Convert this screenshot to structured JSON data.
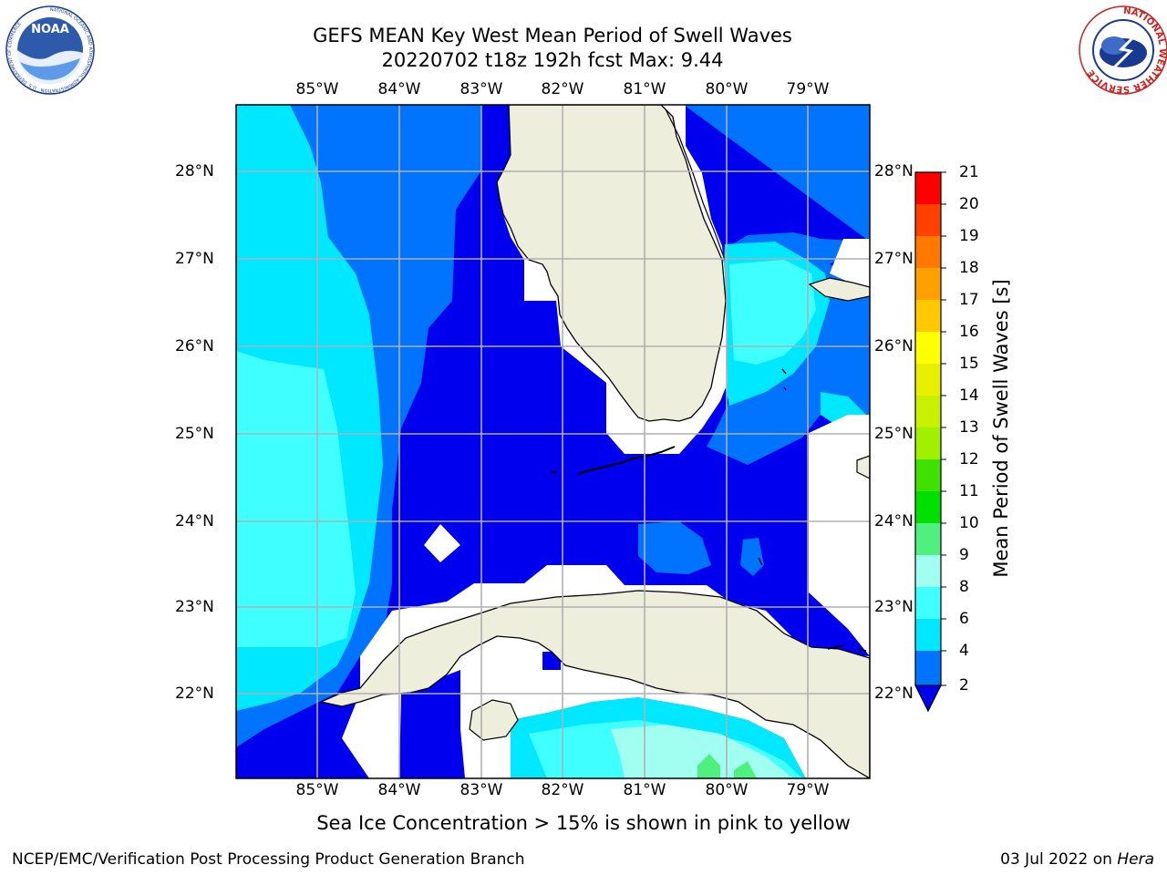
{
  "title": {
    "line1": "GEFS MEAN Key West Mean Period of Swell Waves",
    "line2": "20220702 t18z 192h fcst   Max: 9.44"
  },
  "map": {
    "lon_ticks": [
      "85°W",
      "84°W",
      "83°W",
      "82°W",
      "81°W",
      "80°W",
      "79°W"
    ],
    "lat_ticks": [
      "28°N",
      "27°N",
      "26°N",
      "25°N",
      "24°N",
      "23°N",
      "22°N"
    ],
    "extent_deg": {
      "lon_min": -86,
      "lon_max": -78.25,
      "lat_min": 21.0,
      "lat_max": 28.75
    }
  },
  "colorbar": {
    "label": "Mean Period of Swell Waves [s]",
    "ticks": [
      "21",
      "20",
      "19",
      "18",
      "17",
      "16",
      "15",
      "14",
      "13",
      "12",
      "11",
      "10",
      "9",
      "8",
      "6",
      "4",
      "2"
    ],
    "levels": [
      {
        "from": 2,
        "to": 4,
        "color": "#0055ff"
      },
      {
        "from": 4,
        "to": 6,
        "color": "#00e6ff"
      },
      {
        "from": 6,
        "to": 8,
        "color": "#40ffff"
      },
      {
        "from": 8,
        "to": 9,
        "color": "#a0fff0"
      },
      {
        "from": 9,
        "to": 10,
        "color": "#50f080"
      },
      {
        "from": 10,
        "to": 11,
        "color": "#00e000"
      },
      {
        "from": 11,
        "to": 12,
        "color": "#40e000"
      },
      {
        "from": 12,
        "to": 13,
        "color": "#a0f000"
      },
      {
        "from": 13,
        "to": 14,
        "color": "#c8f000"
      },
      {
        "from": 14,
        "to": 15,
        "color": "#e8f000"
      },
      {
        "from": 15,
        "to": 16,
        "color": "#ffff00"
      },
      {
        "from": 16,
        "to": 17,
        "color": "#ffc800"
      },
      {
        "from": 17,
        "to": 18,
        "color": "#ffa000"
      },
      {
        "from": 18,
        "to": 19,
        "color": "#ff7800"
      },
      {
        "from": 19,
        "to": 20,
        "color": "#ff4000"
      },
      {
        "from": 20,
        "to": 21,
        "color": "#ff0000"
      }
    ],
    "underflow_color": "#0000ee"
  },
  "colors": {
    "deep_blue": "#0000ee",
    "mid_blue": "#0073ff",
    "cyan": "#00e8ff",
    "light_cyan": "#40ffff",
    "pale_cyan": "#a0fff0",
    "green": "#50f080",
    "land": "#eeeedd"
  },
  "subtitle": "Sea Ice Concentration > 15% is shown in pink to yellow",
  "footer": {
    "left": "NCEP/EMC/Verification Post Processing Product Generation Branch",
    "date": "03 Jul 2022 on ",
    "host": "Hera"
  },
  "logos": {
    "left": "NOAA",
    "left_ring": "NATIONAL OCEANIC AND ATMOSPHERIC ADMINISTRATION · U.S. DEPARTMENT OF COMMERCE",
    "right_ring": "NATIONAL WEATHER SERVICE"
  }
}
